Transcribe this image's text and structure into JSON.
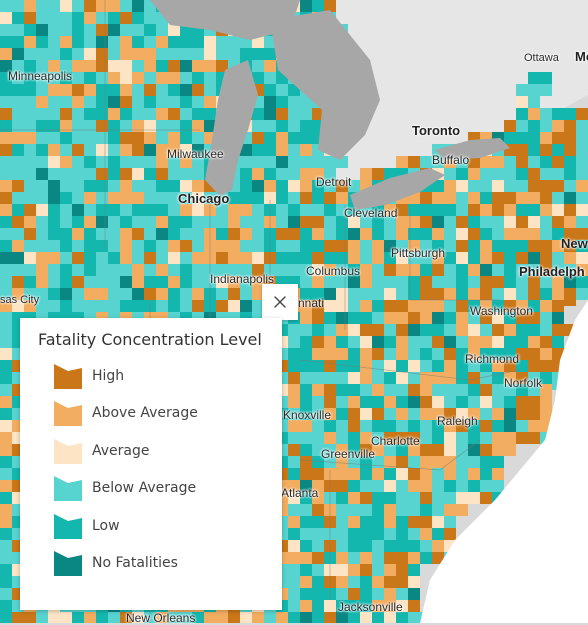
{
  "legend": {
    "title": "Fatality Concentration Level",
    "items": [
      {
        "label": "High",
        "color": "#c97718"
      },
      {
        "label": "Above Average",
        "color": "#f3ad60"
      },
      {
        "label": "Average",
        "color": "#fde4c4"
      },
      {
        "label": "Below Average",
        "color": "#57d3d0"
      },
      {
        "label": "Low",
        "color": "#13b7ae"
      },
      {
        "label": "No Fatalities",
        "color": "#0a8783"
      }
    ]
  },
  "colors": {
    "land": "#d9d9d9",
    "water": "#ffffff",
    "lake": "#a7a7a7",
    "border": "#7a7a7a"
  },
  "close_icon": "close-icon",
  "cities": [
    {
      "name": "Minneapolis",
      "major": false
    },
    {
      "name": "Ottawa",
      "major": false
    },
    {
      "name": "Mo",
      "major": true
    },
    {
      "name": "Toronto",
      "major": true
    },
    {
      "name": "Milwaukee",
      "major": false
    },
    {
      "name": "Buffalo",
      "major": false
    },
    {
      "name": "Detroit",
      "major": false
    },
    {
      "name": "Chicago",
      "major": true
    },
    {
      "name": "Cleveland",
      "major": false
    },
    {
      "name": "New",
      "major": true
    },
    {
      "name": "Pittsburgh",
      "major": false
    },
    {
      "name": "Philadelph",
      "major": true
    },
    {
      "name": "Indianapolis",
      "major": false
    },
    {
      "name": "Columbus",
      "major": false
    },
    {
      "name": "nnati",
      "major": false
    },
    {
      "name": "Washington",
      "major": false
    },
    {
      "name": "Richmond",
      "major": false
    },
    {
      "name": "Norfolk",
      "major": false
    },
    {
      "name": "Knoxville",
      "major": false
    },
    {
      "name": "Raleigh",
      "major": false
    },
    {
      "name": "Charlotte",
      "major": false
    },
    {
      "name": "Greenville",
      "major": false
    },
    {
      "name": "Atlanta",
      "major": false
    },
    {
      "name": "Jacksonville",
      "major": false
    },
    {
      "name": "New Orleans",
      "major": false
    },
    {
      "name": "sas City",
      "major": false
    }
  ]
}
